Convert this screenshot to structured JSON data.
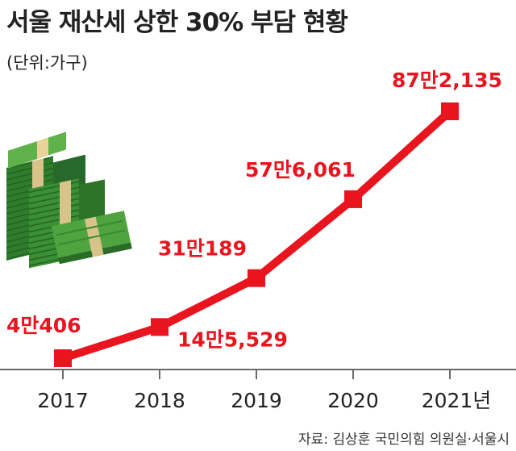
{
  "header": {
    "title": "서울 재산세 상한 30% 부담 현황",
    "unit": "(단위:가구)"
  },
  "footer": {
    "source": "자료: 김상훈 국민의힘 의원실·서울시"
  },
  "colors": {
    "line": "#e8151f",
    "label": "#e8151f",
    "money_dark": "#2f7d2c",
    "money_light": "#5fb24a",
    "band": "#d8c48a"
  },
  "decoration": {
    "icon": "money-stack-icon"
  },
  "chart_data": {
    "type": "line",
    "title": "서울 재산세 상한 30% 부담 현황",
    "unit": "(단위:가구)",
    "categories": [
      "2017",
      "2018",
      "2019",
      "2020",
      "2021년"
    ],
    "series": [
      {
        "values": [
          40406,
          145529,
          310189,
          576061,
          872135
        ],
        "labels": [
          "4만406",
          "14만5,529",
          "31만189",
          "57만6,061",
          "87만2,135"
        ]
      }
    ],
    "ylim": [
      0,
      900000
    ]
  }
}
